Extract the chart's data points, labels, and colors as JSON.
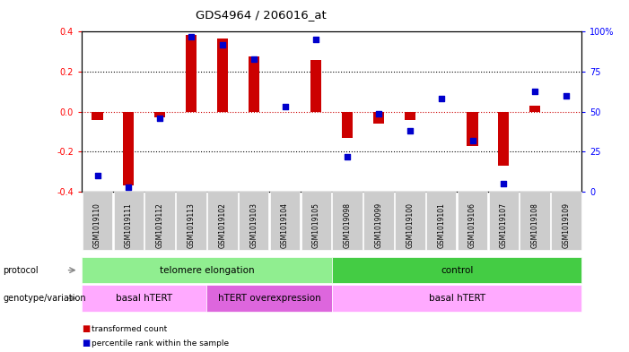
{
  "title": "GDS4964 / 206016_at",
  "samples": [
    "GSM1019110",
    "GSM1019111",
    "GSM1019112",
    "GSM1019113",
    "GSM1019102",
    "GSM1019103",
    "GSM1019104",
    "GSM1019105",
    "GSM1019098",
    "GSM1019099",
    "GSM1019100",
    "GSM1019101",
    "GSM1019106",
    "GSM1019107",
    "GSM1019108",
    "GSM1019109"
  ],
  "transformed_count": [
    -0.04,
    -0.37,
    -0.03,
    0.385,
    0.365,
    0.275,
    0.0,
    0.26,
    -0.13,
    -0.06,
    -0.04,
    0.0,
    -0.17,
    -0.27,
    0.03,
    0.0
  ],
  "percentile_rank": [
    10,
    3,
    46,
    97,
    92,
    83,
    53,
    95,
    22,
    49,
    38,
    58,
    32,
    5,
    63,
    60
  ],
  "protocol_groups": [
    {
      "label": "telomere elongation",
      "start": 0,
      "end": 8,
      "color": "#90ee90"
    },
    {
      "label": "control",
      "start": 8,
      "end": 16,
      "color": "#44cc44"
    }
  ],
  "genotype_groups": [
    {
      "label": "basal hTERT",
      "start": 0,
      "end": 4,
      "color": "#ffaaff"
    },
    {
      "label": "hTERT overexpression",
      "start": 4,
      "end": 8,
      "color": "#dd66dd"
    },
    {
      "label": "basal hTERT",
      "start": 8,
      "end": 16,
      "color": "#ffaaff"
    }
  ],
  "bar_color": "#cc0000",
  "dot_color": "#0000cc",
  "ylim_left": [
    -0.4,
    0.4
  ],
  "ylim_right": [
    0,
    100
  ],
  "yticks_left": [
    -0.4,
    -0.2,
    0.0,
    0.2,
    0.4
  ],
  "yticks_right": [
    0,
    25,
    50,
    75,
    100
  ],
  "ytick_labels_right": [
    "0",
    "25",
    "50",
    "75",
    "100%"
  ],
  "hline_color": "#cc0000",
  "grid_color": "#000000",
  "bg_color": "#ffffff",
  "bar_width": 0.35,
  "dot_size": 22,
  "tick_bg": "#cccccc"
}
